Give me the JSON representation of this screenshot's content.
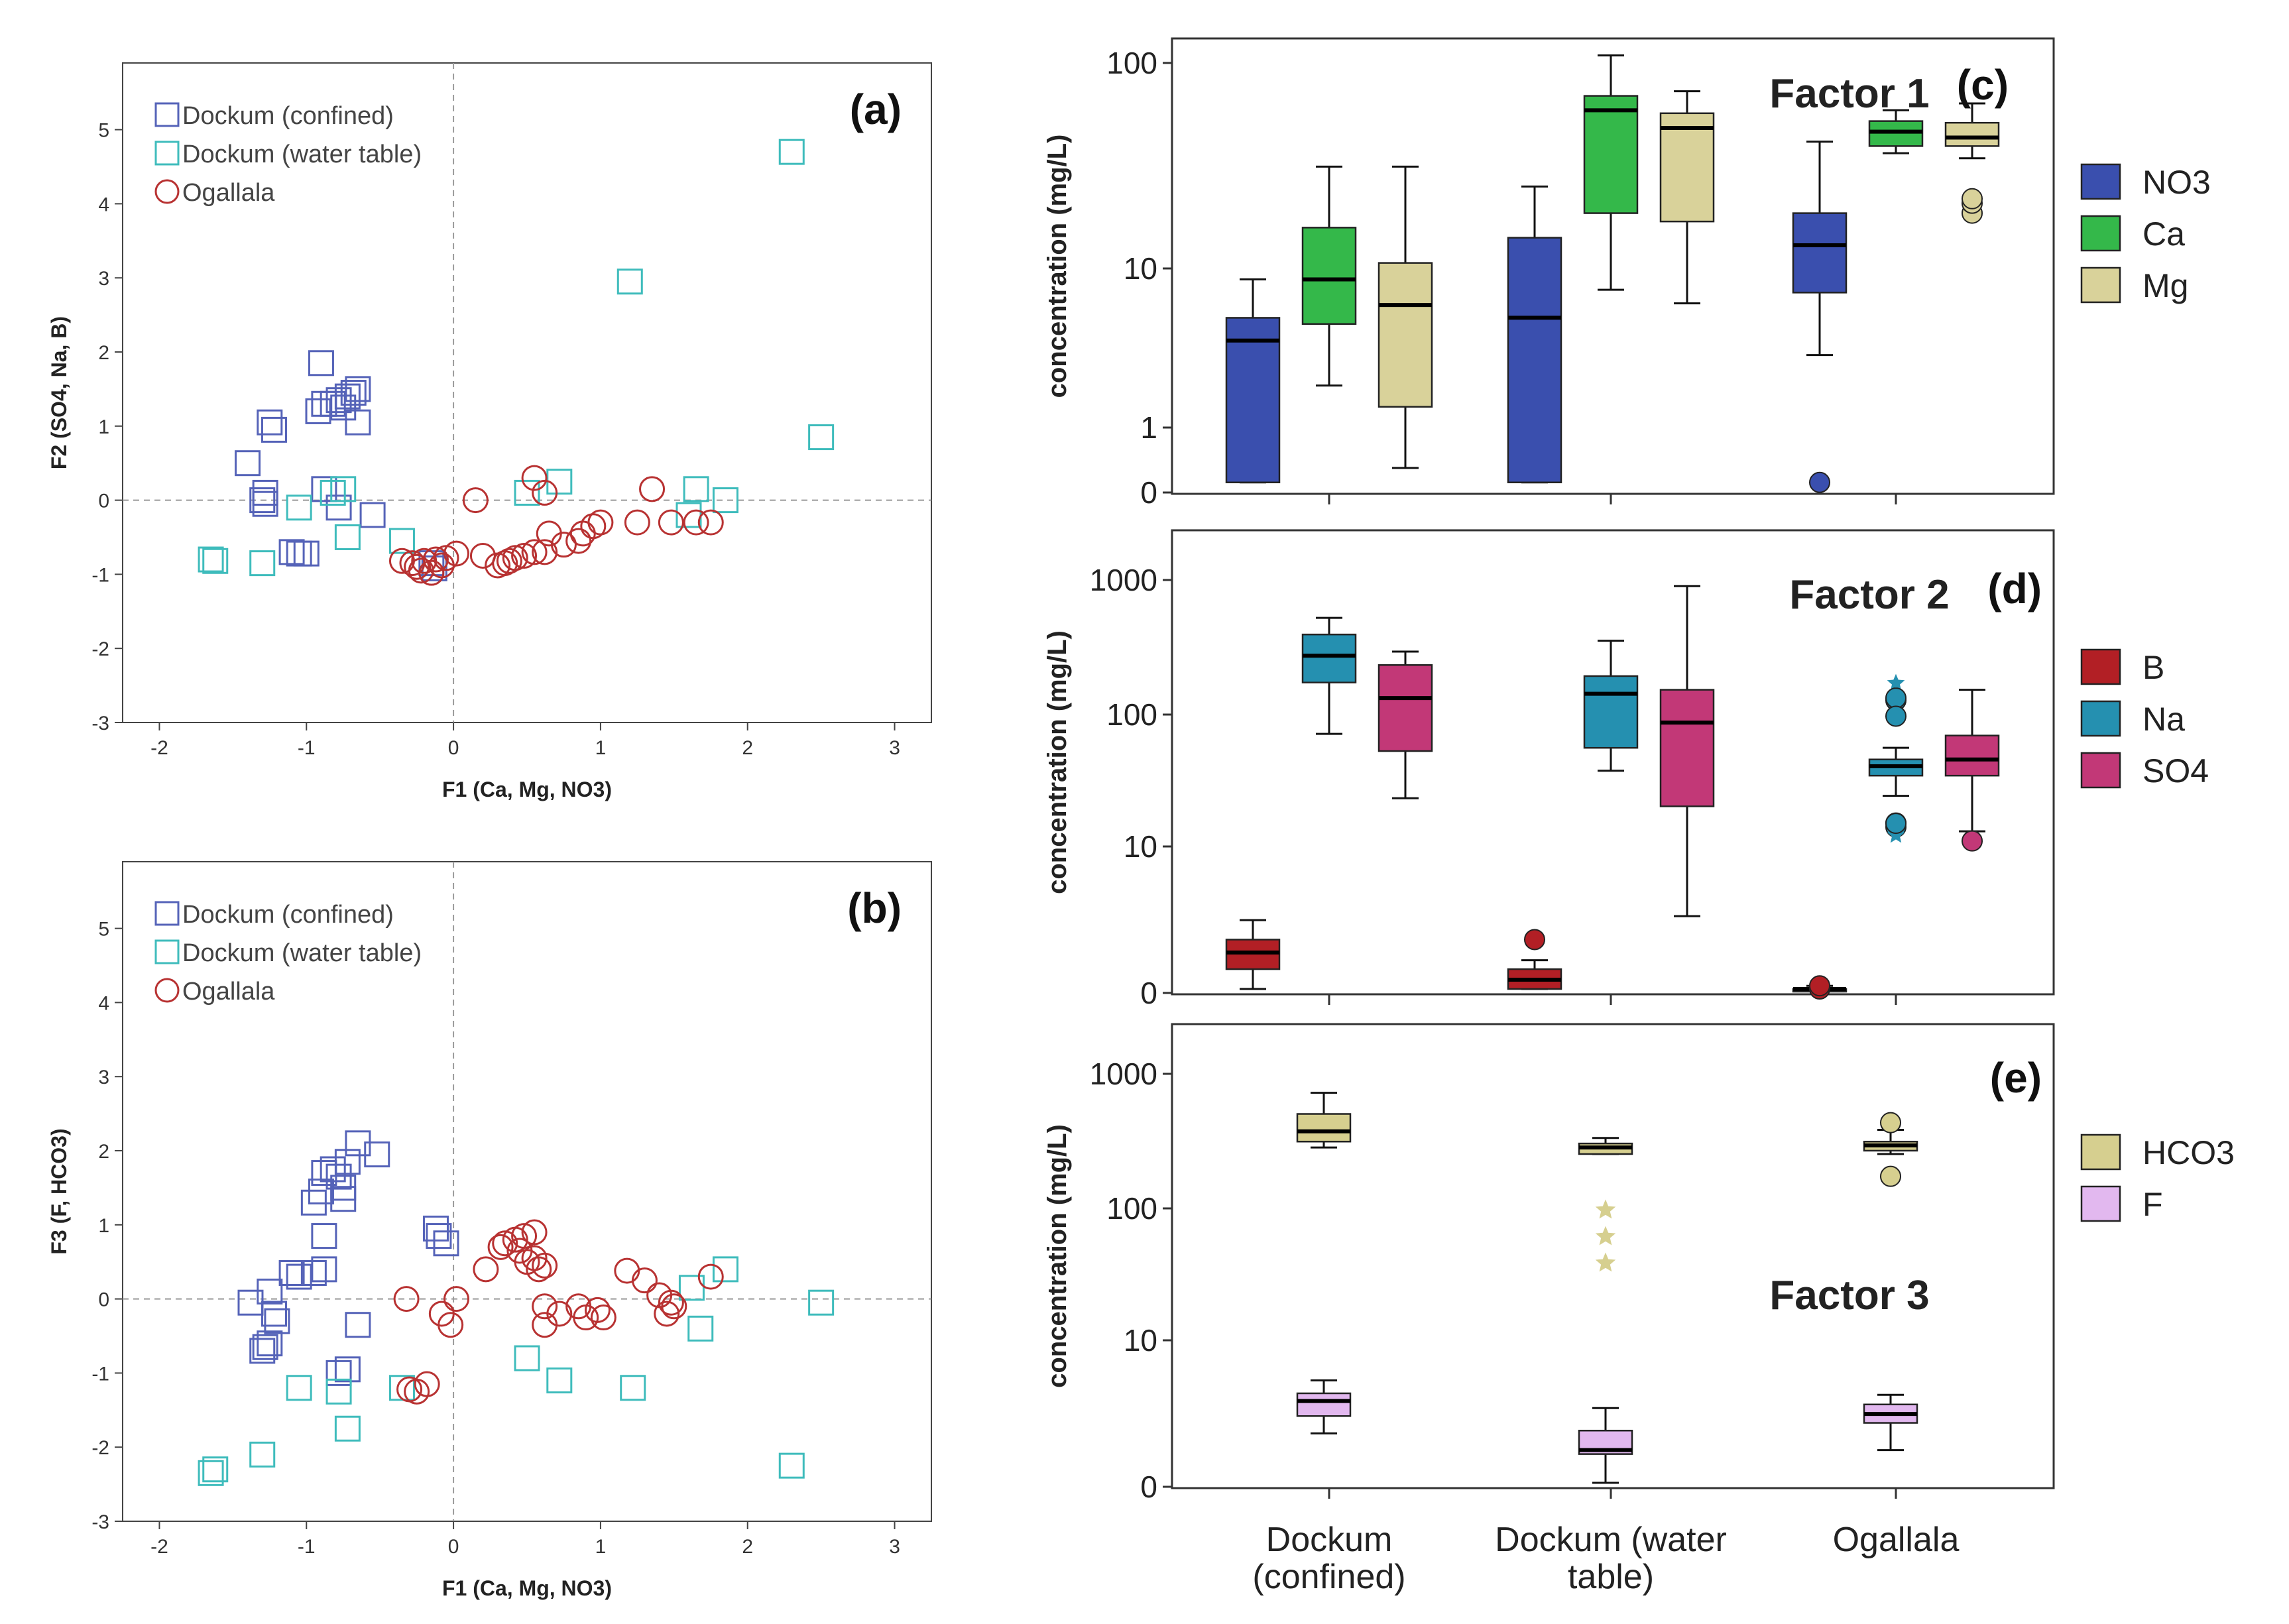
{
  "scatter_style": {
    "dockum_confined_color": "#5563b8",
    "dockum_water_table_color": "#3fbcbc",
    "ogallala_color": "#b83232"
  },
  "box_colors": {
    "NO3": "#3a4fae",
    "Ca": "#34b84a",
    "Mg": "#d9d29a",
    "B": "#b21f25",
    "Na": "#2590b0",
    "SO4": "#c23877",
    "HCO3": "#d6cf8f",
    "F": "#e2b8ef"
  },
  "chart_data": [
    {
      "panel": "(a)",
      "type": "scatter",
      "xlabel": "F1 (Ca, Mg, NO3)",
      "ylabel": "F2 (SO4, Na, B)",
      "xlim": [
        -2.25,
        3.25
      ],
      "ylim": [
        -3,
        5.9
      ],
      "xticks": [
        -2,
        -1,
        0,
        1,
        2,
        3
      ],
      "yticks": [
        -3,
        -2,
        -1,
        0,
        1,
        2,
        3,
        4,
        5
      ],
      "legend": [
        "Dockum (confined)",
        "Dockum (water table)",
        "Ogallala"
      ],
      "series": [
        {
          "name": "Dockum (confined)",
          "marker": "square",
          "points": [
            [
              -0.9,
              1.85
            ],
            [
              -0.65,
              1.5
            ],
            [
              -0.68,
              1.45
            ],
            [
              -0.72,
              1.4
            ],
            [
              -0.78,
              1.35
            ],
            [
              -0.82,
              1.3
            ],
            [
              -0.88,
              1.3
            ],
            [
              -0.75,
              1.25
            ],
            [
              -0.92,
              1.2
            ],
            [
              -0.65,
              1.05
            ],
            [
              -1.25,
              1.05
            ],
            [
              -1.22,
              0.95
            ],
            [
              -1.4,
              0.5
            ],
            [
              -0.88,
              0.15
            ],
            [
              -1.28,
              0.1
            ],
            [
              -1.3,
              0.0
            ],
            [
              -1.28,
              -0.05
            ],
            [
              -0.78,
              -0.1
            ],
            [
              -0.55,
              -0.2
            ],
            [
              -1.1,
              -0.7
            ],
            [
              -1.05,
              -0.72
            ],
            [
              -1.0,
              -0.72
            ],
            [
              -0.15,
              -0.85
            ],
            [
              -0.13,
              -0.92
            ]
          ]
        },
        {
          "name": "Dockum (water table)",
          "marker": "square",
          "points": [
            [
              2.3,
              4.7
            ],
            [
              1.2,
              2.95
            ],
            [
              2.5,
              0.85
            ],
            [
              0.72,
              0.25
            ],
            [
              0.5,
              0.1
            ],
            [
              -0.75,
              0.15
            ],
            [
              -0.82,
              0.1
            ],
            [
              -1.05,
              -0.1
            ],
            [
              -0.72,
              -0.5
            ],
            [
              -0.35,
              -0.55
            ],
            [
              1.65,
              0.15
            ],
            [
              1.85,
              0.0
            ],
            [
              1.6,
              -0.2
            ],
            [
              -1.62,
              -0.82
            ],
            [
              -1.65,
              -0.8
            ],
            [
              -1.3,
              -0.85
            ]
          ]
        },
        {
          "name": "Ogallala",
          "marker": "circle",
          "points": [
            [
              0.55,
              0.3
            ],
            [
              0.62,
              0.1
            ],
            [
              0.15,
              0.0
            ],
            [
              1.35,
              0.15
            ],
            [
              1.65,
              -0.3
            ],
            [
              1.75,
              -0.3
            ],
            [
              1.48,
              -0.3
            ],
            [
              1.25,
              -0.3
            ],
            [
              1.0,
              -0.3
            ],
            [
              0.95,
              -0.35
            ],
            [
              0.65,
              -0.45
            ],
            [
              0.88,
              -0.45
            ],
            [
              0.85,
              -0.55
            ],
            [
              0.75,
              -0.6
            ],
            [
              0.62,
              -0.7
            ],
            [
              0.55,
              -0.7
            ],
            [
              0.48,
              -0.75
            ],
            [
              0.42,
              -0.78
            ],
            [
              0.38,
              -0.82
            ],
            [
              0.35,
              -0.85
            ],
            [
              0.3,
              -0.88
            ],
            [
              0.2,
              -0.75
            ],
            [
              0.02,
              -0.72
            ],
            [
              -0.05,
              -0.78
            ],
            [
              -0.12,
              -0.8
            ],
            [
              -0.2,
              -0.82
            ],
            [
              -0.28,
              -0.85
            ],
            [
              -0.35,
              -0.82
            ],
            [
              -0.25,
              -0.9
            ],
            [
              -0.22,
              -0.95
            ],
            [
              -0.15,
              -0.98
            ],
            [
              -0.08,
              -0.88
            ]
          ]
        }
      ]
    },
    {
      "panel": "(b)",
      "type": "scatter",
      "xlabel": "F1 (Ca, Mg, NO3)",
      "ylabel": "F3 (F, HCO3)",
      "xlim": [
        -2.25,
        3.25
      ],
      "ylim": [
        -3,
        5.9
      ],
      "xticks": [
        -2,
        -1,
        0,
        1,
        2,
        3
      ],
      "yticks": [
        -3,
        -2,
        -1,
        0,
        1,
        2,
        3,
        4,
        5
      ],
      "legend": [
        "Dockum (confined)",
        "Dockum (water table)",
        "Ogallala"
      ],
      "series": [
        {
          "name": "Dockum (confined)",
          "marker": "square",
          "points": [
            [
              -0.65,
              2.1
            ],
            [
              -0.52,
              1.95
            ],
            [
              -0.72,
              1.85
            ],
            [
              -0.82,
              1.75
            ],
            [
              -0.88,
              1.7
            ],
            [
              -0.78,
              1.65
            ],
            [
              -0.75,
              1.5
            ],
            [
              -0.9,
              1.45
            ],
            [
              -0.75,
              1.35
            ],
            [
              -0.95,
              1.3
            ],
            [
              -0.88,
              0.85
            ],
            [
              -0.12,
              0.95
            ],
            [
              -0.1,
              0.85
            ],
            [
              -0.05,
              0.75
            ],
            [
              -0.88,
              0.4
            ],
            [
              -0.95,
              0.35
            ],
            [
              -1.1,
              0.35
            ],
            [
              -1.05,
              0.3
            ],
            [
              -1.25,
              0.1
            ],
            [
              -1.38,
              -0.05
            ],
            [
              -1.22,
              -0.2
            ],
            [
              -1.2,
              -0.3
            ],
            [
              -0.65,
              -0.35
            ],
            [
              -1.25,
              -0.6
            ],
            [
              -1.28,
              -0.65
            ],
            [
              -1.3,
              -0.7
            ],
            [
              -0.78,
              -1.0
            ],
            [
              -0.72,
              -0.95
            ]
          ]
        },
        {
          "name": "Dockum (water table)",
          "marker": "square",
          "points": [
            [
              2.5,
              -0.05
            ],
            [
              1.85,
              0.4
            ],
            [
              1.62,
              0.15
            ],
            [
              1.68,
              -0.4
            ],
            [
              0.5,
              -0.8
            ],
            [
              0.72,
              -1.1
            ],
            [
              1.22,
              -1.2
            ],
            [
              -0.72,
              -1.75
            ],
            [
              -1.05,
              -1.2
            ],
            [
              -0.78,
              -1.25
            ],
            [
              -0.35,
              -1.2
            ],
            [
              -1.3,
              -2.1
            ],
            [
              -1.62,
              -2.3
            ],
            [
              -1.65,
              -2.35
            ],
            [
              2.3,
              -2.25
            ]
          ]
        },
        {
          "name": "Ogallala",
          "marker": "circle",
          "points": [
            [
              0.55,
              0.9
            ],
            [
              0.48,
              0.85
            ],
            [
              0.42,
              0.8
            ],
            [
              0.35,
              0.75
            ],
            [
              0.32,
              0.7
            ],
            [
              0.45,
              0.65
            ],
            [
              0.55,
              0.55
            ],
            [
              0.5,
              0.5
            ],
            [
              0.62,
              0.45
            ],
            [
              0.58,
              0.4
            ],
            [
              0.22,
              0.4
            ],
            [
              1.18,
              0.38
            ],
            [
              1.3,
              0.25
            ],
            [
              1.75,
              0.3
            ],
            [
              1.4,
              0.05
            ],
            [
              1.48,
              -0.05
            ],
            [
              1.5,
              -0.1
            ],
            [
              1.45,
              -0.2
            ],
            [
              -0.32,
              0.0
            ],
            [
              0.02,
              0.0
            ],
            [
              0.62,
              -0.1
            ],
            [
              0.85,
              -0.1
            ],
            [
              0.98,
              -0.15
            ],
            [
              0.72,
              -0.2
            ],
            [
              0.9,
              -0.25
            ],
            [
              1.02,
              -0.25
            ],
            [
              0.62,
              -0.35
            ],
            [
              -0.08,
              -0.2
            ],
            [
              -0.02,
              -0.35
            ],
            [
              -0.18,
              -1.15
            ],
            [
              -0.3,
              -1.22
            ],
            [
              -0.25,
              -1.25
            ]
          ]
        }
      ]
    },
    {
      "panel": "(c)",
      "type": "box",
      "title": "Factor 1",
      "ylabel": "concentration (mg/L)",
      "ytick_labels": [
        "0",
        "1",
        "10",
        "100"
      ],
      "categories": [
        "Dockum (confined)",
        "Dockum (water table)",
        "Ogallala"
      ],
      "legend": [
        "NO3",
        "Ca",
        "Mg"
      ],
      "series": [
        {
          "name": "NO3",
          "boxes": [
            {
              "min": 0.5,
              "q1": 0.5,
              "median": 3.0,
              "q3": 4.0,
              "max": 6.5,
              "outliers": []
            },
            {
              "min": 0.5,
              "q1": 0.5,
              "median": 4.0,
              "q3": 11,
              "max": 21,
              "outliers": []
            },
            {
              "min": 2.5,
              "q1": 5.5,
              "median": 10,
              "q3": 15,
              "max": 37,
              "outliers": [
                0.5
              ]
            }
          ]
        },
        {
          "name": "Ca",
          "boxes": [
            {
              "min": 1.7,
              "q1": 3.7,
              "median": 6.5,
              "q3": 12.5,
              "max": 27,
              "outliers": []
            },
            {
              "min": 5.7,
              "q1": 15,
              "median": 55,
              "q3": 66,
              "max": 110,
              "outliers": []
            },
            {
              "min": 32,
              "q1": 35,
              "median": 42,
              "q3": 48,
              "max": 55,
              "outliers": []
            }
          ]
        },
        {
          "name": "Mg",
          "boxes": [
            {
              "min": 0.6,
              "q1": 1.3,
              "median": 4.7,
              "q3": 8.0,
              "max": 27,
              "outliers": []
            },
            {
              "min": 4.8,
              "q1": 13.5,
              "median": 44,
              "q3": 53,
              "max": 70,
              "outliers": []
            },
            {
              "min": 30,
              "q1": 35,
              "median": 39,
              "q3": 47,
              "max": 60,
              "outliers": [
                15,
                17,
                18
              ]
            }
          ]
        }
      ]
    },
    {
      "panel": "(d)",
      "type": "box",
      "title": "Factor 2",
      "ylabel": "concentration (mg/L)",
      "ytick_labels": [
        "0",
        "10",
        "100",
        "1000"
      ],
      "categories": [
        "Dockum (confined)",
        "Dockum (water table)",
        "Ogallala"
      ],
      "legend": [
        "B",
        "Na",
        "SO4"
      ],
      "series": [
        {
          "name": "B",
          "boxes": [
            {
              "min": 0.8,
              "q1": 1.2,
              "median": 1.6,
              "q3": 2.0,
              "max": 2.8,
              "outliers": []
            },
            {
              "min": 0.5,
              "q1": 0.8,
              "median": 1.0,
              "q3": 1.2,
              "max": 1.4,
              "outliers": [
                2.0
              ]
            },
            {
              "min": 0.4,
              "q1": 0.6,
              "median": 0.7,
              "q3": 0.8,
              "max": 0.9,
              "outliers": [
                0.5,
                0.9
              ]
            }
          ]
        },
        {
          "name": "Na",
          "boxes": [
            {
              "min": 70,
              "q1": 170,
              "median": 270,
              "q3": 390,
              "max": 520,
              "outliers": []
            },
            {
              "min": 37,
              "q1": 55,
              "median": 140,
              "q3": 190,
              "max": 350,
              "outliers": []
            },
            {
              "min": 24,
              "q1": 34,
              "median": 40,
              "q3": 45,
              "max": 55,
              "outliers": [
                140,
                130,
                95,
                15,
                14,
                13
              ]
            }
          ]
        },
        {
          "name": "SO4",
          "boxes": [
            {
              "min": 23,
              "q1": 52,
              "median": 130,
              "q3": 230,
              "max": 290,
              "outliers": []
            },
            {
              "min": 3.0,
              "q1": 20,
              "median": 85,
              "q3": 150,
              "max": 900,
              "outliers": []
            },
            {
              "min": 13,
              "q1": 34,
              "median": 45,
              "q3": 68,
              "max": 150,
              "outliers": [
                11
              ]
            }
          ]
        }
      ]
    },
    {
      "panel": "(e)",
      "type": "box",
      "title": "Factor 3",
      "ylabel": "concentration (mg/L)",
      "ytick_labels": [
        "0",
        "10",
        "100",
        "1000"
      ],
      "categories": [
        "Dockum (confined)",
        "Dockum (water table)",
        "Ogallala"
      ],
      "legend": [
        "HCO3",
        "F"
      ],
      "series": [
        {
          "name": "HCO3",
          "boxes": [
            {
              "min": 280,
              "q1": 310,
              "median": 370,
              "q3": 500,
              "max": 720,
              "outliers": []
            },
            {
              "min": 250,
              "q1": 250,
              "median": 280,
              "q3": 300,
              "max": 330,
              "outliers": [
                95,
                60,
                38
              ]
            },
            {
              "min": 250,
              "q1": 265,
              "median": 290,
              "q3": 310,
              "max": 380,
              "outliers": [
                430,
                170
              ]
            }
          ]
        },
        {
          "name": "F",
          "boxes": [
            {
              "min": 2.0,
              "q1": 2.7,
              "median": 3.5,
              "q3": 4.0,
              "max": 5.0,
              "outliers": []
            },
            {
              "min": 0.8,
              "q1": 1.4,
              "median": 1.5,
              "q3": 2.1,
              "max": 3.1,
              "outliers": []
            },
            {
              "min": 1.5,
              "q1": 2.4,
              "median": 2.8,
              "q3": 3.3,
              "max": 3.9,
              "outliers": []
            }
          ]
        }
      ]
    }
  ]
}
